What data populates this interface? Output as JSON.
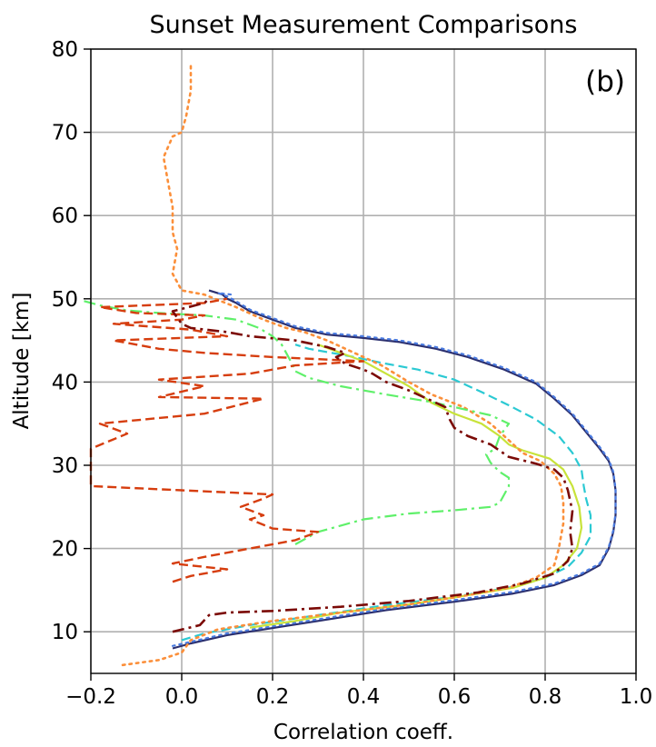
{
  "chart_data": {
    "type": "line",
    "title": "Sunset Measurement Comparisons",
    "xlabel": "Correlation coeff.",
    "ylabel": "Altitude [km]",
    "panel_label": "(b)",
    "xlim": [
      -0.2,
      1.0
    ],
    "ylim": [
      5,
      80
    ],
    "xticks": [
      -0.2,
      0.0,
      0.2,
      0.4,
      0.6,
      0.8,
      1.0
    ],
    "xtick_labels": [
      "−0.2",
      "0.0",
      "0.2",
      "0.4",
      "0.6",
      "0.8",
      "1.0"
    ],
    "yticks": [
      10,
      20,
      30,
      40,
      50,
      60,
      70,
      80
    ],
    "ytick_labels": [
      "10",
      "20",
      "30",
      "40",
      "50",
      "60",
      "70",
      "80"
    ],
    "grid": true,
    "legend": "none",
    "series": [
      {
        "color": "#2b2f6e",
        "dash": "solid",
        "width": 2.2,
        "points": [
          [
            -0.02,
            8
          ],
          [
            0.02,
            8.6
          ],
          [
            0.1,
            9.6
          ],
          [
            0.3,
            11.3
          ],
          [
            0.45,
            12.6
          ],
          [
            0.6,
            13.6
          ],
          [
            0.73,
            14.6
          ],
          [
            0.82,
            15.6
          ],
          [
            0.88,
            16.8
          ],
          [
            0.92,
            18
          ],
          [
            0.94,
            20
          ],
          [
            0.95,
            22
          ],
          [
            0.955,
            24
          ],
          [
            0.955,
            27
          ],
          [
            0.95,
            29
          ],
          [
            0.94,
            30.5
          ],
          [
            0.92,
            32
          ],
          [
            0.89,
            34
          ],
          [
            0.86,
            36
          ],
          [
            0.82,
            38
          ],
          [
            0.78,
            39.8
          ],
          [
            0.71,
            41.5
          ],
          [
            0.63,
            43
          ],
          [
            0.56,
            44
          ],
          [
            0.48,
            44.8
          ],
          [
            0.4,
            45.3
          ],
          [
            0.32,
            45.7
          ],
          [
            0.25,
            46.5
          ],
          [
            0.2,
            47.5
          ],
          [
            0.15,
            48.5
          ],
          [
            0.12,
            49.5
          ],
          [
            0.1,
            50
          ],
          [
            0.09,
            50.5
          ],
          [
            0.06,
            51
          ]
        ]
      },
      {
        "color": "#4a7be0",
        "dash": "dot",
        "width": 2.2,
        "points": [
          [
            -0.02,
            8.3
          ],
          [
            0.02,
            8.8
          ],
          [
            0.1,
            9.8
          ],
          [
            0.3,
            11.5
          ],
          [
            0.45,
            12.8
          ],
          [
            0.6,
            13.8
          ],
          [
            0.73,
            14.8
          ],
          [
            0.82,
            15.8
          ],
          [
            0.88,
            17
          ],
          [
            0.92,
            18.2
          ],
          [
            0.94,
            20.2
          ],
          [
            0.95,
            22.2
          ],
          [
            0.955,
            24.2
          ],
          [
            0.955,
            27.2
          ],
          [
            0.95,
            29.2
          ],
          [
            0.94,
            30.7
          ],
          [
            0.92,
            32.2
          ],
          [
            0.89,
            34.2
          ],
          [
            0.86,
            36.2
          ],
          [
            0.82,
            38.2
          ],
          [
            0.78,
            40
          ],
          [
            0.71,
            41.7
          ],
          [
            0.63,
            43.2
          ],
          [
            0.56,
            44.2
          ],
          [
            0.48,
            45
          ],
          [
            0.4,
            45.5
          ],
          [
            0.32,
            45.9
          ],
          [
            0.25,
            46.7
          ],
          [
            0.2,
            47.7
          ],
          [
            0.15,
            48.7
          ],
          [
            0.12,
            49.7
          ],
          [
            0.1,
            50.3
          ],
          [
            0.08,
            50.7
          ],
          [
            0.11,
            50.5
          ]
        ]
      },
      {
        "color": "#2bc9d3",
        "dash": "dashed",
        "width": 2.2,
        "points": [
          [
            0.0,
            9
          ],
          [
            0.05,
            9.8
          ],
          [
            0.15,
            10.8
          ],
          [
            0.3,
            12
          ],
          [
            0.45,
            13.2
          ],
          [
            0.6,
            14.2
          ],
          [
            0.72,
            15.3
          ],
          [
            0.8,
            16.5
          ],
          [
            0.85,
            17.8
          ],
          [
            0.88,
            19.5
          ],
          [
            0.9,
            21.5
          ],
          [
            0.9,
            24
          ],
          [
            0.89,
            26
          ],
          [
            0.885,
            27.5
          ],
          [
            0.88,
            29.5
          ],
          [
            0.86,
            31.5
          ],
          [
            0.83,
            33.5
          ],
          [
            0.78,
            35.5
          ],
          [
            0.72,
            37.2
          ],
          [
            0.66,
            38.8
          ],
          [
            0.6,
            40.3
          ],
          [
            0.52,
            41.5
          ],
          [
            0.44,
            42.3
          ],
          [
            0.38,
            43
          ],
          [
            0.33,
            43.5
          ],
          [
            0.28,
            44
          ],
          [
            0.25,
            44.5
          ]
        ]
      },
      {
        "color": "#c8e33a",
        "dash": "solid",
        "width": 2.2,
        "points": [
          [
            0.15,
            10.5
          ],
          [
            0.25,
            11.3
          ],
          [
            0.35,
            12.3
          ],
          [
            0.5,
            13.3
          ],
          [
            0.62,
            14.3
          ],
          [
            0.73,
            15.3
          ],
          [
            0.8,
            16.5
          ],
          [
            0.84,
            18
          ],
          [
            0.87,
            20
          ],
          [
            0.88,
            22.5
          ],
          [
            0.875,
            25
          ],
          [
            0.86,
            27.5
          ],
          [
            0.84,
            29.5
          ],
          [
            0.81,
            30.8
          ],
          [
            0.75,
            31.8
          ],
          [
            0.72,
            32.5
          ],
          [
            0.7,
            33.5
          ],
          [
            0.66,
            35
          ],
          [
            0.6,
            36.2
          ],
          [
            0.55,
            37.5
          ],
          [
            0.5,
            39.5
          ],
          [
            0.45,
            41
          ],
          [
            0.4,
            42.5
          ],
          [
            0.35,
            43.5
          ],
          [
            0.3,
            44.5
          ]
        ]
      },
      {
        "color": "#fb8f3a",
        "dash": "dot",
        "width": 2.6,
        "points": [
          [
            -0.13,
            6
          ],
          [
            -0.05,
            6.6
          ],
          [
            0.0,
            7.5
          ],
          [
            0.02,
            9
          ],
          [
            0.08,
            10.3
          ],
          [
            0.2,
            11.3
          ],
          [
            0.35,
            12.3
          ],
          [
            0.5,
            13.3
          ],
          [
            0.62,
            14.3
          ],
          [
            0.72,
            15.3
          ],
          [
            0.78,
            16.5
          ],
          [
            0.82,
            18
          ],
          [
            0.83,
            20
          ],
          [
            0.84,
            23
          ],
          [
            0.84,
            25.5
          ],
          [
            0.835,
            27.5
          ],
          [
            0.82,
            29
          ],
          [
            0.79,
            30.5
          ],
          [
            0.75,
            31.5
          ],
          [
            0.72,
            33
          ],
          [
            0.68,
            35
          ],
          [
            0.62,
            37
          ],
          [
            0.55,
            38.5
          ],
          [
            0.5,
            40
          ],
          [
            0.44,
            42
          ],
          [
            0.38,
            43.5
          ],
          [
            0.32,
            45
          ],
          [
            0.27,
            46
          ],
          [
            0.23,
            46.5
          ],
          [
            0.18,
            47.5
          ],
          [
            0.12,
            49
          ],
          [
            0.05,
            50.5
          ],
          [
            0.0,
            51
          ],
          [
            -0.02,
            53
          ],
          [
            -0.01,
            56
          ],
          [
            -0.02,
            58
          ],
          [
            -0.02,
            61
          ],
          [
            -0.03,
            64
          ],
          [
            -0.04,
            67
          ],
          [
            -0.02,
            69.5
          ],
          [
            0.0,
            70
          ],
          [
            0.01,
            72
          ],
          [
            0.02,
            75
          ],
          [
            0.02,
            78
          ]
        ]
      },
      {
        "color": "#5ff06a",
        "dash": "dashdot",
        "width": 2.2,
        "points": [
          [
            0.25,
            20.5
          ],
          [
            0.3,
            22
          ],
          [
            0.4,
            23.5
          ],
          [
            0.5,
            24.2
          ],
          [
            0.6,
            24.6
          ],
          [
            0.68,
            25
          ],
          [
            0.7,
            25.5
          ],
          [
            0.72,
            27.5
          ],
          [
            0.72,
            28.5
          ],
          [
            0.7,
            29.2
          ],
          [
            0.68,
            30.3
          ],
          [
            0.67,
            31.3
          ],
          [
            0.69,
            32
          ],
          [
            0.7,
            33.5
          ],
          [
            0.72,
            35
          ],
          [
            0.68,
            36
          ],
          [
            0.6,
            37
          ],
          [
            0.55,
            37.6
          ],
          [
            0.45,
            38.5
          ],
          [
            0.35,
            39.5
          ],
          [
            0.28,
            40.5
          ],
          [
            0.25,
            41.3
          ],
          [
            0.24,
            42.5
          ],
          [
            0.23,
            43.5
          ],
          [
            0.22,
            44.5
          ],
          [
            0.2,
            45.5
          ],
          [
            0.17,
            46.5
          ],
          [
            0.12,
            47.5
          ],
          [
            0.05,
            48
          ],
          [
            -0.05,
            48.3
          ],
          [
            -0.12,
            48.6
          ],
          [
            -0.18,
            49.2
          ],
          [
            -0.22,
            49.8
          ]
        ]
      },
      {
        "color": "#d63d0e",
        "dash": "dashed",
        "width": 2.4,
        "points": [
          [
            -0.02,
            16
          ],
          [
            0.02,
            16.7
          ],
          [
            0.1,
            17.5
          ],
          [
            -0.02,
            18.2
          ],
          [
            0.05,
            19
          ],
          [
            0.13,
            19.8
          ],
          [
            0.25,
            21
          ],
          [
            0.3,
            22
          ],
          [
            0.2,
            22.4
          ],
          [
            0.15,
            23.5
          ],
          [
            0.18,
            24
          ],
          [
            0.13,
            25
          ],
          [
            0.18,
            26
          ],
          [
            0.2,
            26.5
          ],
          [
            0.0,
            27
          ],
          [
            -0.2,
            27.5
          ],
          [
            -0.2,
            32
          ],
          [
            -0.12,
            33.8
          ],
          [
            -0.18,
            35
          ],
          [
            0.05,
            36.2
          ],
          [
            0.18,
            38
          ],
          [
            -0.05,
            38.2
          ],
          [
            0.05,
            39.5
          ],
          [
            -0.05,
            40.3
          ],
          [
            0.15,
            41
          ],
          [
            0.25,
            42
          ],
          [
            0.4,
            42.5
          ],
          [
            0.2,
            43
          ],
          [
            0.05,
            43.5
          ],
          [
            -0.05,
            44
          ],
          [
            -0.15,
            45
          ],
          [
            0.1,
            45.5
          ],
          [
            0.02,
            46.3
          ],
          [
            -0.15,
            47
          ],
          [
            0.0,
            47.5
          ],
          [
            0.05,
            48
          ],
          [
            -0.1,
            48.3
          ],
          [
            -0.18,
            49
          ],
          [
            0.05,
            49.5
          ],
          [
            0.1,
            50
          ]
        ]
      },
      {
        "color": "#7b0a06",
        "dash": "dashdot",
        "width": 2.6,
        "points": [
          [
            -0.02,
            10
          ],
          [
            0.04,
            10.8
          ],
          [
            0.06,
            12
          ],
          [
            0.1,
            12.3
          ],
          [
            0.2,
            12.5
          ],
          [
            0.35,
            13
          ],
          [
            0.5,
            13.7
          ],
          [
            0.65,
            14.7
          ],
          [
            0.75,
            15.8
          ],
          [
            0.82,
            17
          ],
          [
            0.85,
            18.5
          ],
          [
            0.86,
            20
          ],
          [
            0.855,
            22
          ],
          [
            0.86,
            24.5
          ],
          [
            0.85,
            27
          ],
          [
            0.84,
            28.5
          ],
          [
            0.82,
            29.5
          ],
          [
            0.78,
            30.2
          ],
          [
            0.72,
            31
          ],
          [
            0.68,
            32.5
          ],
          [
            0.63,
            33.5
          ],
          [
            0.6,
            34.5
          ],
          [
            0.59,
            35.5
          ],
          [
            0.58,
            37
          ],
          [
            0.54,
            38
          ],
          [
            0.5,
            39
          ],
          [
            0.45,
            40
          ],
          [
            0.42,
            41
          ],
          [
            0.4,
            41.5
          ],
          [
            0.36,
            42.2
          ],
          [
            0.34,
            43
          ],
          [
            0.36,
            43.5
          ],
          [
            0.32,
            44.2
          ],
          [
            0.25,
            45
          ],
          [
            0.15,
            45.5
          ],
          [
            0.1,
            46
          ],
          [
            0.02,
            46.5
          ],
          [
            0.0,
            47
          ],
          [
            -0.02,
            48.5
          ],
          [
            0.05,
            49.5
          ],
          [
            0.06,
            50
          ]
        ]
      }
    ]
  }
}
